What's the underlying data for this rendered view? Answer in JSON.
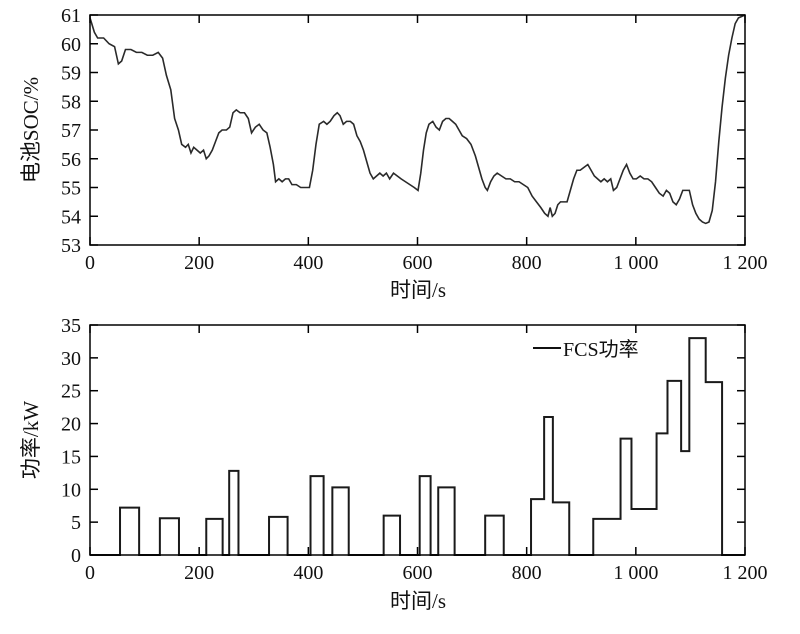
{
  "page": {
    "background": "#ffffff",
    "text_color": "#111111"
  },
  "chart_data": [
    {
      "id": "soc",
      "type": "line",
      "title": "",
      "xlabel": "时间/s",
      "ylabel": "电池SOC/%",
      "xlim": [
        0,
        1200
      ],
      "ylim": [
        53,
        61
      ],
      "xticks": [
        0,
        200,
        400,
        600,
        800,
        1000,
        1200
      ],
      "xtick_labels": [
        "0",
        "200",
        "400",
        "600",
        "800",
        "1 000",
        "1 200"
      ],
      "yticks": [
        53,
        54,
        55,
        56,
        57,
        58,
        59,
        60,
        61
      ],
      "ytick_labels": [
        "53",
        "54",
        "55",
        "56",
        "57",
        "58",
        "59",
        "60",
        "61"
      ],
      "grid": false,
      "axis_color": "#000000",
      "line_color": "#2a2a2a",
      "series": [
        {
          "name": "电池SOC",
          "points": [
            [
              0,
              60.9
            ],
            [
              8,
              60.4
            ],
            [
              14,
              60.2
            ],
            [
              25,
              60.2
            ],
            [
              35,
              60.0
            ],
            [
              45,
              59.9
            ],
            [
              52,
              59.3
            ],
            [
              58,
              59.4
            ],
            [
              65,
              59.8
            ],
            [
              75,
              59.8
            ],
            [
              85,
              59.7
            ],
            [
              95,
              59.7
            ],
            [
              105,
              59.6
            ],
            [
              115,
              59.6
            ],
            [
              125,
              59.7
            ],
            [
              133,
              59.5
            ],
            [
              140,
              58.9
            ],
            [
              148,
              58.4
            ],
            [
              155,
              57.4
            ],
            [
              162,
              57.0
            ],
            [
              168,
              56.5
            ],
            [
              175,
              56.4
            ],
            [
              180,
              56.5
            ],
            [
              185,
              56.2
            ],
            [
              190,
              56.4
            ],
            [
              196,
              56.3
            ],
            [
              202,
              56.2
            ],
            [
              208,
              56.3
            ],
            [
              213,
              56.0
            ],
            [
              218,
              56.1
            ],
            [
              224,
              56.3
            ],
            [
              230,
              56.6
            ],
            [
              236,
              56.9
            ],
            [
              242,
              57.0
            ],
            [
              250,
              57.0
            ],
            [
              256,
              57.1
            ],
            [
              262,
              57.6
            ],
            [
              268,
              57.7
            ],
            [
              275,
              57.6
            ],
            [
              283,
              57.6
            ],
            [
              290,
              57.4
            ],
            [
              296,
              56.9
            ],
            [
              303,
              57.1
            ],
            [
              310,
              57.2
            ],
            [
              317,
              57.0
            ],
            [
              324,
              56.9
            ],
            [
              330,
              56.4
            ],
            [
              336,
              55.8
            ],
            [
              340,
              55.2
            ],
            [
              346,
              55.3
            ],
            [
              352,
              55.2
            ],
            [
              358,
              55.3
            ],
            [
              364,
              55.3
            ],
            [
              370,
              55.1
            ],
            [
              378,
              55.1
            ],
            [
              386,
              55.0
            ],
            [
              394,
              55.0
            ],
            [
              402,
              55.0
            ],
            [
              408,
              55.6
            ],
            [
              414,
              56.5
            ],
            [
              420,
              57.2
            ],
            [
              428,
              57.3
            ],
            [
              434,
              57.2
            ],
            [
              440,
              57.3
            ],
            [
              447,
              57.5
            ],
            [
              453,
              57.6
            ],
            [
              458,
              57.5
            ],
            [
              464,
              57.2
            ],
            [
              470,
              57.3
            ],
            [
              477,
              57.3
            ],
            [
              483,
              57.2
            ],
            [
              489,
              56.8
            ],
            [
              495,
              56.6
            ],
            [
              501,
              56.3
            ],
            [
              507,
              55.9
            ],
            [
              513,
              55.5
            ],
            [
              519,
              55.3
            ],
            [
              525,
              55.4
            ],
            [
              531,
              55.5
            ],
            [
              537,
              55.4
            ],
            [
              543,
              55.5
            ],
            [
              549,
              55.3
            ],
            [
              556,
              55.5
            ],
            [
              563,
              55.4
            ],
            [
              570,
              55.3
            ],
            [
              578,
              55.2
            ],
            [
              586,
              55.1
            ],
            [
              594,
              55.0
            ],
            [
              601,
              54.9
            ],
            [
              606,
              55.5
            ],
            [
              611,
              56.3
            ],
            [
              616,
              56.9
            ],
            [
              621,
              57.2
            ],
            [
              628,
              57.3
            ],
            [
              634,
              57.1
            ],
            [
              640,
              57.0
            ],
            [
              646,
              57.3
            ],
            [
              652,
              57.4
            ],
            [
              658,
              57.4
            ],
            [
              664,
              57.3
            ],
            [
              670,
              57.2
            ],
            [
              676,
              57.0
            ],
            [
              682,
              56.8
            ],
            [
              690,
              56.7
            ],
            [
              698,
              56.5
            ],
            [
              706,
              56.1
            ],
            [
              712,
              55.7
            ],
            [
              718,
              55.3
            ],
            [
              724,
              55.0
            ],
            [
              728,
              54.9
            ],
            [
              734,
              55.2
            ],
            [
              740,
              55.4
            ],
            [
              746,
              55.5
            ],
            [
              754,
              55.4
            ],
            [
              762,
              55.3
            ],
            [
              770,
              55.3
            ],
            [
              778,
              55.2
            ],
            [
              786,
              55.2
            ],
            [
              794,
              55.1
            ],
            [
              802,
              55.0
            ],
            [
              810,
              54.7
            ],
            [
              818,
              54.5
            ],
            [
              826,
              54.3
            ],
            [
              833,
              54.1
            ],
            [
              839,
              54.0
            ],
            [
              843,
              54.3
            ],
            [
              847,
              54.0
            ],
            [
              852,
              54.1
            ],
            [
              857,
              54.4
            ],
            [
              862,
              54.5
            ],
            [
              868,
              54.5
            ],
            [
              874,
              54.5
            ],
            [
              880,
              54.9
            ],
            [
              886,
              55.3
            ],
            [
              892,
              55.6
            ],
            [
              898,
              55.6
            ],
            [
              905,
              55.7
            ],
            [
              912,
              55.8
            ],
            [
              918,
              55.6
            ],
            [
              924,
              55.4
            ],
            [
              930,
              55.3
            ],
            [
              936,
              55.2
            ],
            [
              942,
              55.3
            ],
            [
              948,
              55.2
            ],
            [
              954,
              55.3
            ],
            [
              959,
              54.9
            ],
            [
              965,
              55.0
            ],
            [
              971,
              55.3
            ],
            [
              977,
              55.6
            ],
            [
              983,
              55.8
            ],
            [
              989,
              55.5
            ],
            [
              995,
              55.3
            ],
            [
              1001,
              55.3
            ],
            [
              1008,
              55.4
            ],
            [
              1015,
              55.3
            ],
            [
              1022,
              55.3
            ],
            [
              1029,
              55.2
            ],
            [
              1036,
              55.0
            ],
            [
              1043,
              54.8
            ],
            [
              1050,
              54.7
            ],
            [
              1056,
              54.9
            ],
            [
              1062,
              54.8
            ],
            [
              1068,
              54.5
            ],
            [
              1074,
              54.4
            ],
            [
              1080,
              54.6
            ],
            [
              1086,
              54.9
            ],
            [
              1092,
              54.9
            ],
            [
              1098,
              54.9
            ],
            [
              1104,
              54.4
            ],
            [
              1110,
              54.1
            ],
            [
              1116,
              53.9
            ],
            [
              1122,
              53.8
            ],
            [
              1128,
              53.75
            ],
            [
              1134,
              53.8
            ],
            [
              1140,
              54.2
            ],
            [
              1146,
              55.2
            ],
            [
              1152,
              56.6
            ],
            [
              1158,
              57.8
            ],
            [
              1164,
              58.8
            ],
            [
              1170,
              59.6
            ],
            [
              1176,
              60.2
            ],
            [
              1182,
              60.7
            ],
            [
              1188,
              60.9
            ],
            [
              1200,
              61.0
            ]
          ]
        }
      ]
    },
    {
      "id": "fcs",
      "type": "line",
      "interpolation": "step-after",
      "title": "",
      "xlabel": "时间/s",
      "ylabel": "功率/kW",
      "xlim": [
        0,
        1200
      ],
      "ylim": [
        0,
        35
      ],
      "xticks": [
        0,
        200,
        400,
        600,
        800,
        1000,
        1200
      ],
      "xtick_labels": [
        "0",
        "200",
        "400",
        "600",
        "800",
        "1 000",
        "1 200"
      ],
      "yticks": [
        0,
        5,
        10,
        15,
        20,
        25,
        30,
        35
      ],
      "ytick_labels": [
        "0",
        "5",
        "10",
        "15",
        "20",
        "25",
        "30",
        "35"
      ],
      "grid": false,
      "axis_color": "#000000",
      "line_color": "#1a1a1a",
      "legend": {
        "label": "FCS功率",
        "position": "top-right"
      },
      "series": [
        {
          "name": "FCS功率",
          "points": [
            [
              0,
              0
            ],
            [
              55,
              7.2
            ],
            [
              90,
              0
            ],
            [
              128,
              5.6
            ],
            [
              163,
              0
            ],
            [
              213,
              5.5
            ],
            [
              243,
              0
            ],
            [
              255,
              12.8
            ],
            [
              272,
              0
            ],
            [
              328,
              5.8
            ],
            [
              362,
              0
            ],
            [
              404,
              12.0
            ],
            [
              428,
              0
            ],
            [
              444,
              10.3
            ],
            [
              474,
              0
            ],
            [
              538,
              6.0
            ],
            [
              568,
              0
            ],
            [
              604,
              12.0
            ],
            [
              624,
              0
            ],
            [
              638,
              10.3
            ],
            [
              668,
              0
            ],
            [
              724,
              6.0
            ],
            [
              758,
              0
            ],
            [
              808,
              8.5
            ],
            [
              832,
              21.0
            ],
            [
              848,
              8.0
            ],
            [
              878,
              0
            ],
            [
              922,
              5.5
            ],
            [
              972,
              17.7
            ],
            [
              992,
              7.0
            ],
            [
              1038,
              18.5
            ],
            [
              1058,
              26.5
            ],
            [
              1083,
              15.8
            ],
            [
              1098,
              33.0
            ],
            [
              1128,
              26.3
            ],
            [
              1158,
              0
            ]
          ]
        }
      ]
    }
  ]
}
